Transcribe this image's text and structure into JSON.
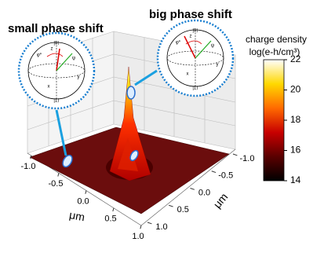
{
  "chart_data": {
    "type": "surface",
    "annotations": [
      "small phase shift",
      "big phase shift"
    ],
    "xlabel": "μm",
    "ylabel": "μm",
    "xlim": [
      -1,
      1
    ],
    "xticks": [
      {
        "value": -1,
        "label": "-1.0"
      },
      {
        "value": -0.5,
        "label": "-0.5"
      },
      {
        "value": 0,
        "label": "0.0"
      },
      0.5,
      {
        "value": 1,
        "label": "1.0"
      }
    ],
    "ylim": [
      -1,
      1
    ],
    "yticks": [
      {
        "value": -1,
        "label": "-1.0"
      },
      {
        "value": -0.5,
        "label": "-0.5"
      },
      {
        "value": 0,
        "label": "0.0"
      },
      0.5,
      {
        "value": 1,
        "label": "1.0"
      }
    ],
    "colorbar": {
      "title": "charge density",
      "label": "log(e-h/cm³)",
      "clim": [
        14,
        22
      ],
      "ticks": [
        14,
        16,
        18,
        20,
        22
      ],
      "colors": [
        "#000000",
        "#5a0000",
        "#c80000",
        "#ff6a00",
        "#ffd800",
        "#ffffff"
      ]
    },
    "insets": [
      {
        "labels": [
          "|0⟩",
          "|1⟩",
          "x",
          "y",
          "z",
          "φ*",
          "ψ"
        ]
      },
      {
        "labels": [
          "|0⟩",
          "|1⟩",
          "x",
          "y",
          "z",
          "φ*",
          "ψ"
        ]
      }
    ]
  }
}
